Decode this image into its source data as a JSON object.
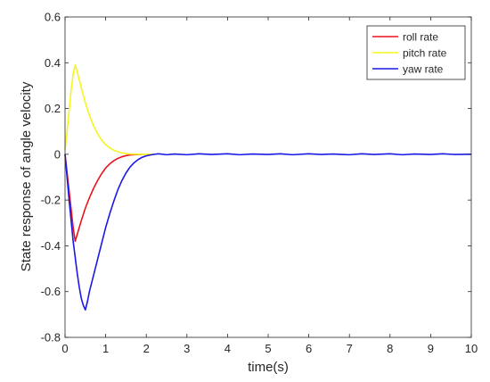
{
  "chart_data": {
    "type": "line",
    "title": "",
    "xlabel": "time(s)",
    "ylabel": "State response of angle velocity",
    "xlim": [
      0,
      10
    ],
    "ylim": [
      -0.8,
      0.6
    ],
    "xticks": [
      "0",
      "1",
      "2",
      "3",
      "4",
      "5",
      "6",
      "7",
      "8",
      "9",
      "10"
    ],
    "yticks": [
      "0.6",
      "0.4",
      "0.2",
      "0",
      "-0.2",
      "-0.4",
      "-0.6",
      "-0.8"
    ],
    "grid": false,
    "legend_position": "top-right",
    "series": [
      {
        "name": "roll rate",
        "color": "#e8141c",
        "x": [
          0,
          0.05,
          0.1,
          0.15,
          0.2,
          0.25,
          0.3,
          0.4,
          0.5,
          0.6,
          0.7,
          0.8,
          0.9,
          1.0,
          1.1,
          1.2,
          1.3,
          1.4,
          1.5,
          1.6,
          1.7,
          1.8,
          1.9,
          2.0,
          2.1,
          2.2
        ],
        "y": [
          0,
          -0.08,
          -0.16,
          -0.24,
          -0.32,
          -0.38,
          -0.35,
          -0.29,
          -0.235,
          -0.19,
          -0.15,
          -0.115,
          -0.085,
          -0.06,
          -0.042,
          -0.028,
          -0.018,
          -0.011,
          -0.006,
          -0.003,
          -0.002,
          -0.001,
          0,
          0,
          0,
          0
        ]
      },
      {
        "name": "pitch rate",
        "color": "#f5f51e",
        "x": [
          0,
          0.05,
          0.1,
          0.15,
          0.2,
          0.25,
          0.3,
          0.4,
          0.5,
          0.6,
          0.7,
          0.8,
          0.9,
          1.0,
          1.1,
          1.2,
          1.3,
          1.4,
          1.5,
          1.6,
          1.7,
          1.8,
          1.9,
          2.0,
          2.1,
          2.2
        ],
        "y": [
          0.02,
          0.1,
          0.19,
          0.28,
          0.35,
          0.39,
          0.36,
          0.29,
          0.225,
          0.17,
          0.125,
          0.09,
          0.062,
          0.042,
          0.028,
          0.018,
          0.011,
          0.006,
          0.003,
          0.001,
          0,
          0,
          0,
          0,
          0,
          0
        ]
      },
      {
        "name": "yaw rate",
        "color": "#1a1ae6",
        "x": [
          0,
          0.05,
          0.1,
          0.15,
          0.2,
          0.25,
          0.3,
          0.35,
          0.4,
          0.45,
          0.5,
          0.55,
          0.6,
          0.7,
          0.8,
          0.9,
          1.0,
          1.1,
          1.2,
          1.3,
          1.4,
          1.5,
          1.6,
          1.7,
          1.8,
          1.9,
          2.0,
          2.1,
          2.2,
          2.3,
          2.5,
          2.7,
          3.0,
          3.3,
          3.6,
          4.0,
          4.3,
          4.6,
          5.0,
          5.3,
          5.6,
          6.0,
          6.3,
          6.6,
          7.0,
          7.3,
          7.6,
          8.0,
          8.3,
          8.6,
          9.0,
          9.3,
          9.6,
          10.0
        ],
        "y": [
          0,
          -0.1,
          -0.2,
          -0.29,
          -0.38,
          -0.45,
          -0.52,
          -0.58,
          -0.63,
          -0.66,
          -0.68,
          -0.645,
          -0.6,
          -0.53,
          -0.46,
          -0.39,
          -0.32,
          -0.26,
          -0.205,
          -0.155,
          -0.115,
          -0.082,
          -0.056,
          -0.037,
          -0.023,
          -0.013,
          -0.007,
          -0.003,
          0,
          0.002,
          -0.002,
          0.001,
          -0.002,
          0.002,
          -0.001,
          0.002,
          -0.002,
          0.001,
          -0.001,
          0.002,
          -0.002,
          0.002,
          -0.001,
          0.001,
          -0.002,
          0.002,
          -0.001,
          0.002,
          -0.002,
          0.001,
          -0.001,
          0.002,
          -0.001,
          0
        ]
      }
    ]
  }
}
